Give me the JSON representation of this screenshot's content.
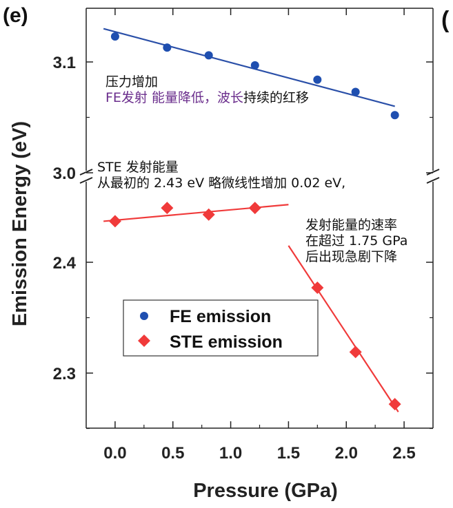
{
  "panel_label": "(e)",
  "edge_mark": "(",
  "annotations": {
    "fe_line1": "压力增加",
    "fe_line2_purple": "FE发射 能量降低，波长",
    "fe_line2_black": "持续的红移",
    "ste_line1": "STE 发射能量",
    "ste_line2": "从最初的 2.43 eV 略微线性增加 0.02 eV,",
    "rate_line1": "发射能量的速率",
    "rate_line2": "在超过 1.75 GPa",
    "rate_line3": "后出现急剧下降"
  },
  "chart_data": {
    "type": "scatter",
    "xlabel": "Pressure (GPa)",
    "ylabel": "Emission Energy (eV)",
    "xlim": [
      -0.25,
      2.75
    ],
    "x_ticks": [
      "0.0",
      "0.5",
      "1.0",
      "1.5",
      "2.0",
      "2.5"
    ],
    "x_tick_values": [
      0.0,
      0.5,
      1.0,
      1.5,
      2.0,
      2.5
    ],
    "axis_break": "y between 3.0 and ~2.45",
    "upper_ylim": [
      3.0,
      3.15
    ],
    "upper_y_ticks": [
      "3.0",
      "3.1"
    ],
    "lower_ylim": [
      2.25,
      2.46
    ],
    "lower_y_ticks": [
      "2.3",
      "2.4"
    ],
    "grid": false,
    "legend_position": "lower-left",
    "series": [
      {
        "name": "FE emission",
        "marker": "circle",
        "color": "#1f4fb0",
        "x": [
          0.0,
          0.45,
          0.81,
          1.21,
          1.75,
          2.08,
          2.42
        ],
        "y": [
          3.123,
          3.113,
          3.106,
          3.097,
          3.084,
          3.073,
          3.052
        ],
        "fit": {
          "x": [
            -0.1,
            2.42
          ],
          "y": [
            3.13,
            3.06
          ],
          "color": "#2a4fa8"
        }
      },
      {
        "name": "STE emission",
        "marker": "diamond",
        "color": "#f03a3a",
        "x": [
          0.0,
          0.45,
          0.81,
          1.21,
          1.75,
          2.08,
          2.42
        ],
        "y": [
          2.437,
          2.449,
          2.443,
          2.449,
          2.377,
          2.319,
          2.272
        ],
        "fit_segments": [
          {
            "x": [
              -0.1,
              1.5
            ],
            "y": [
              2.437,
              2.452
            ],
            "color": "#f03a3a"
          },
          {
            "x": [
              1.5,
              2.45
            ],
            "y": [
              2.415,
              2.265
            ],
            "color": "#f03a3a"
          }
        ]
      }
    ]
  }
}
